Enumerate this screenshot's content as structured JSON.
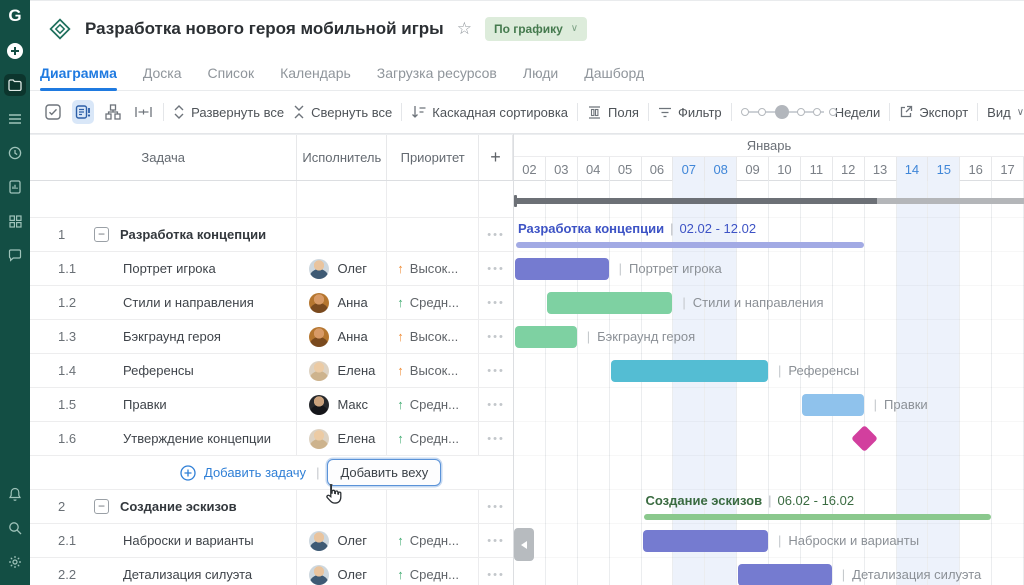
{
  "sidebar": {
    "logo": "G"
  },
  "header": {
    "title": "Разработка нового героя мобильной игры",
    "status_label": "По графику"
  },
  "tabs": [
    {
      "label": "Диаграмма",
      "active": true
    },
    {
      "label": "Доска",
      "active": false
    },
    {
      "label": "Список",
      "active": false
    },
    {
      "label": "Календарь",
      "active": false
    },
    {
      "label": "Загрузка ресурсов",
      "active": false
    },
    {
      "label": "Люди",
      "active": false
    },
    {
      "label": "Дашборд",
      "active": false
    }
  ],
  "toolbar": {
    "expand_all": "Развернуть все",
    "collapse_all": "Свернуть все",
    "cascade_sort": "Каскадная сортировка",
    "fields": "Поля",
    "filter": "Фильтр",
    "zoom_label": "Недели",
    "export": "Экспорт",
    "view": "Вид"
  },
  "grid": {
    "columns": [
      "Задача",
      "Исполнитель",
      "Приоритет",
      "+"
    ]
  },
  "add_row": {
    "add_task": "Добавить задачу",
    "add_milestone": "Добавить веху"
  },
  "glyphs": {
    "collapse": "−",
    "dots": "•••",
    "pipe": "|",
    "chevron_down": "∨",
    "star": "☆"
  },
  "timeline": {
    "month": "Январь",
    "days": [
      "02",
      "03",
      "04",
      "05",
      "06",
      "07",
      "08",
      "09",
      "10",
      "11",
      "12",
      "13",
      "14",
      "15",
      "16",
      "17"
    ],
    "weekend_indices": [
      5,
      6,
      12,
      13
    ]
  },
  "people": {
    "Олег": {
      "skin": "#e9c49e",
      "shirt": "#3e5a74",
      "bg": "#cdd7de"
    },
    "Анна": {
      "skin": "#d89a66",
      "shirt": "#7a4a1e",
      "bg": "#b5762f"
    },
    "Елена": {
      "skin": "#eccba4",
      "shirt": "#cdb38d",
      "bg": "#ddd2c2"
    },
    "Макс": {
      "skin": "#caa27d",
      "shirt": "#15161a",
      "bg": "#26282c"
    }
  },
  "priority_colors": {
    "high": "#ef8f3c",
    "mid": "#45ad74"
  },
  "rows": [
    {
      "type": "project",
      "bar": {
        "dark_days": 11.4,
        "done_color": "#6c7076",
        "rest_color": "#b4b6b9"
      }
    },
    {
      "type": "group",
      "wbs": "1",
      "name": "Разработка концепции",
      "dates": "02.02 - 12.02",
      "bar": {
        "start": 0,
        "days": 11,
        "color": "#a2aae4",
        "text_color": "#3d53c5"
      }
    },
    {
      "type": "task",
      "wbs": "1.1",
      "name": "Портрет игрока",
      "assignee": "Олег",
      "priority": "high",
      "priority_label": "Высок...",
      "bar": {
        "start": 0,
        "days": 3,
        "color": "#757bd0"
      }
    },
    {
      "type": "task",
      "wbs": "1.2",
      "name": "Стили и направления",
      "assignee": "Анна",
      "priority": "mid",
      "priority_label": "Средн...",
      "bar": {
        "start": 1,
        "days": 4,
        "color": "#7ed1a2"
      }
    },
    {
      "type": "task",
      "wbs": "1.3",
      "name": "Бэкграунд героя",
      "assignee": "Анна",
      "priority": "high",
      "priority_label": "Высок...",
      "bar": {
        "start": 0,
        "days": 2,
        "color": "#7ed1a2"
      }
    },
    {
      "type": "task",
      "wbs": "1.4",
      "name": "Референсы",
      "assignee": "Елена",
      "priority": "high",
      "priority_label": "Высок...",
      "bar": {
        "start": 3,
        "days": 5,
        "color": "#54bdd3"
      }
    },
    {
      "type": "task",
      "wbs": "1.5",
      "name": "Правки",
      "assignee": "Макс",
      "priority": "mid",
      "priority_label": "Средн...",
      "bar": {
        "start": 9,
        "days": 2,
        "color": "#8fc2ec"
      }
    },
    {
      "type": "task",
      "wbs": "1.6",
      "name": "Утверждение концепции",
      "assignee": "Елена",
      "priority": "mid",
      "priority_label": "Средн...",
      "milestone": {
        "at": 11,
        "color": "#d23f9e"
      }
    },
    {
      "type": "add"
    },
    {
      "type": "group",
      "wbs": "2",
      "name": "Создание эскизов",
      "dates": "06.02 - 16.02",
      "bar": {
        "start": 4,
        "days": 11,
        "color": "#8ac88d",
        "text_color": "#3a6b41"
      }
    },
    {
      "type": "task",
      "wbs": "2.1",
      "name": "Наброски и варианты",
      "assignee": "Олег",
      "priority": "mid",
      "priority_label": "Средн...",
      "bar": {
        "start": 4,
        "days": 4,
        "color": "#757bd0"
      }
    },
    {
      "type": "task",
      "wbs": "2.2",
      "name": "Детализация силуэта",
      "assignee": "Олег",
      "priority": "mid",
      "priority_label": "Средн...",
      "bar": {
        "start": 7,
        "days": 3,
        "color": "#757bd0"
      }
    }
  ]
}
